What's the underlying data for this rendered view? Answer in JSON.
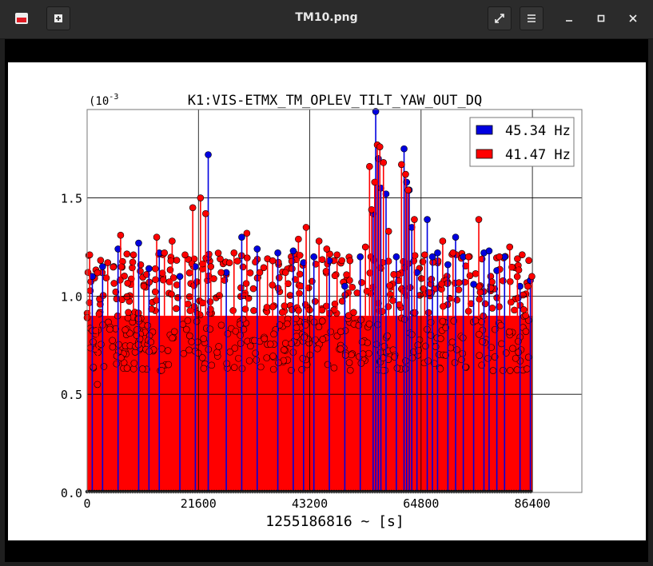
{
  "window": {
    "title": "TM10.png",
    "icons": [
      "app-icon",
      "new-tab-icon",
      "fullscreen-icon",
      "menu-icon",
      "minimize-icon",
      "maximize-icon",
      "close-icon"
    ]
  },
  "chart_data": {
    "type": "scatter",
    "title": "K1:VIS-ETMX_TM_OPLEV_TILT_YAW_OUT_DQ",
    "xlabel": "1255186816 ~ [s]",
    "ylabel": "",
    "y_scale_label": "(10^-3",
    "x_ticks": [
      "0",
      "21600",
      "43200",
      "64800",
      "86400"
    ],
    "y_ticks": [
      "0.0",
      "0.5",
      "1.0",
      "1.5"
    ],
    "xlim": [
      0,
      96000
    ],
    "ylim": [
      0,
      1.95
    ],
    "grid": true,
    "legend_position": "top-right",
    "series": [
      {
        "name": "45.34 Hz",
        "color": "#0000e0",
        "x": [
          1000,
          3000,
          6000,
          10000,
          12000,
          14000,
          18000,
          21000,
          23500,
          27000,
          30000,
          33000,
          37000,
          40000,
          42000,
          44000,
          47000,
          50000,
          53000,
          55500,
          56000,
          56500,
          57000,
          58000,
          60000,
          61500,
          62000,
          62500,
          63000,
          64000,
          66000,
          67000,
          68000,
          70000,
          71500,
          73000,
          75000,
          77000,
          78000,
          79500,
          81000,
          84000,
          86000
        ],
        "values": [
          1.1,
          1.15,
          1.24,
          1.27,
          1.14,
          1.22,
          1.1,
          1.15,
          1.72,
          1.12,
          1.3,
          1.24,
          1.22,
          1.23,
          1.17,
          1.2,
          1.18,
          1.05,
          1.2,
          1.42,
          1.94,
          1.7,
          1.55,
          1.52,
          1.2,
          1.75,
          1.58,
          1.54,
          1.35,
          1.12,
          1.39,
          1.2,
          1.22,
          1.16,
          1.3,
          1.2,
          1.06,
          1.22,
          1.23,
          1.13,
          1.2,
          1.05,
          1.08
        ]
      },
      {
        "name": "41.47 Hz",
        "color": "#ff0000",
        "x": [
          500,
          2000,
          4000,
          6500,
          9000,
          11000,
          13500,
          15000,
          16500,
          19000,
          20500,
          22000,
          23000,
          24000,
          26000,
          28500,
          31000,
          33500,
          35000,
          36000,
          38500,
          41000,
          42500,
          45000,
          46500,
          48500,
          51000,
          54000,
          54800,
          55200,
          55800,
          56300,
          56800,
          57500,
          58500,
          59500,
          61000,
          61800,
          62300,
          63500,
          65500,
          69000,
          71000,
          74000,
          76000,
          80000,
          82000,
          83500,
          85500,
          86300
        ],
        "values": [
          1.21,
          0.55,
          1.17,
          1.31,
          1.21,
          1.05,
          1.3,
          1.22,
          1.28,
          1.21,
          1.45,
          1.5,
          1.42,
          1.15,
          1.12,
          1.22,
          1.32,
          1.12,
          1.19,
          1.18,
          1.12,
          1.29,
          1.35,
          1.28,
          1.24,
          1.21,
          1.18,
          1.25,
          1.66,
          1.44,
          1.58,
          1.77,
          1.76,
          1.68,
          1.33,
          1.11,
          1.67,
          1.62,
          1.54,
          1.39,
          1.21,
          1.28,
          1.22,
          1.2,
          1.39,
          1.2,
          1.25,
          1.19,
          1.05,
          1.1
        ]
      }
    ],
    "fill_band": {
      "y_low": 0.9,
      "y_high": 1.15
    }
  }
}
